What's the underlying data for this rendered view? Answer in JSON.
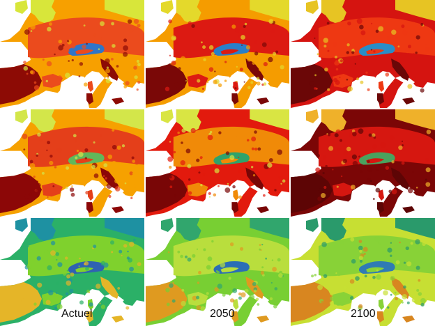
{
  "labels": {
    "current": "Actuel",
    "mid": "2050",
    "end": "2100"
  },
  "legend_free": true,
  "panels": [
    {
      "row": 1,
      "period": "current",
      "palette": "heat",
      "base": "#f7a000",
      "alt": "#eb4b1d",
      "cool": "#d8e63a",
      "cold": "#2f75c8",
      "hot": "#8d0b05"
    },
    {
      "row": 1,
      "period": "mid",
      "palette": "heat",
      "base": "#f59c00",
      "alt": "#dc1a12",
      "cool": "#e4d92b",
      "cold": "#2a7fc9",
      "hot": "#7a0807"
    },
    {
      "row": 1,
      "period": "end",
      "palette": "heat",
      "base": "#d51410",
      "alt": "#ee3812",
      "cool": "#e7c423",
      "cold": "#2a8dc7",
      "hot": "#6b0707"
    },
    {
      "row": 2,
      "period": "current",
      "palette": "heat",
      "base": "#f6a100",
      "alt": "#e43f1a",
      "cool": "#d3e64a",
      "cold": "#61b85b",
      "hot": "#8c0707"
    },
    {
      "row": 2,
      "period": "mid",
      "palette": "heat",
      "base": "#e21a0d",
      "alt": "#f08a08",
      "cool": "#d9e543",
      "cold": "#2fa36b",
      "hot": "#790606"
    },
    {
      "row": 2,
      "period": "end",
      "palette": "heat",
      "base": "#7b0606",
      "alt": "#d61710",
      "cool": "#efb12a",
      "cold": "#4aa25e",
      "hot": "#5d0505"
    },
    {
      "row": 3,
      "period": "current",
      "palette": "green",
      "base": "#2bb067",
      "alt": "#7fd12d",
      "cool": "#1e91a2",
      "cold": "#2f62b2",
      "hot": "#e5b528"
    },
    {
      "row": 3,
      "period": "mid",
      "palette": "green",
      "base": "#78cf33",
      "alt": "#b9de3d",
      "cool": "#31a66d",
      "cold": "#2b6eb5",
      "hot": "#df9a20"
    },
    {
      "row": 3,
      "period": "end",
      "palette": "green",
      "base": "#c7df33",
      "alt": "#88d237",
      "cool": "#2a9a6b",
      "cold": "#2f7bb4",
      "hot": "#d88620"
    }
  ]
}
